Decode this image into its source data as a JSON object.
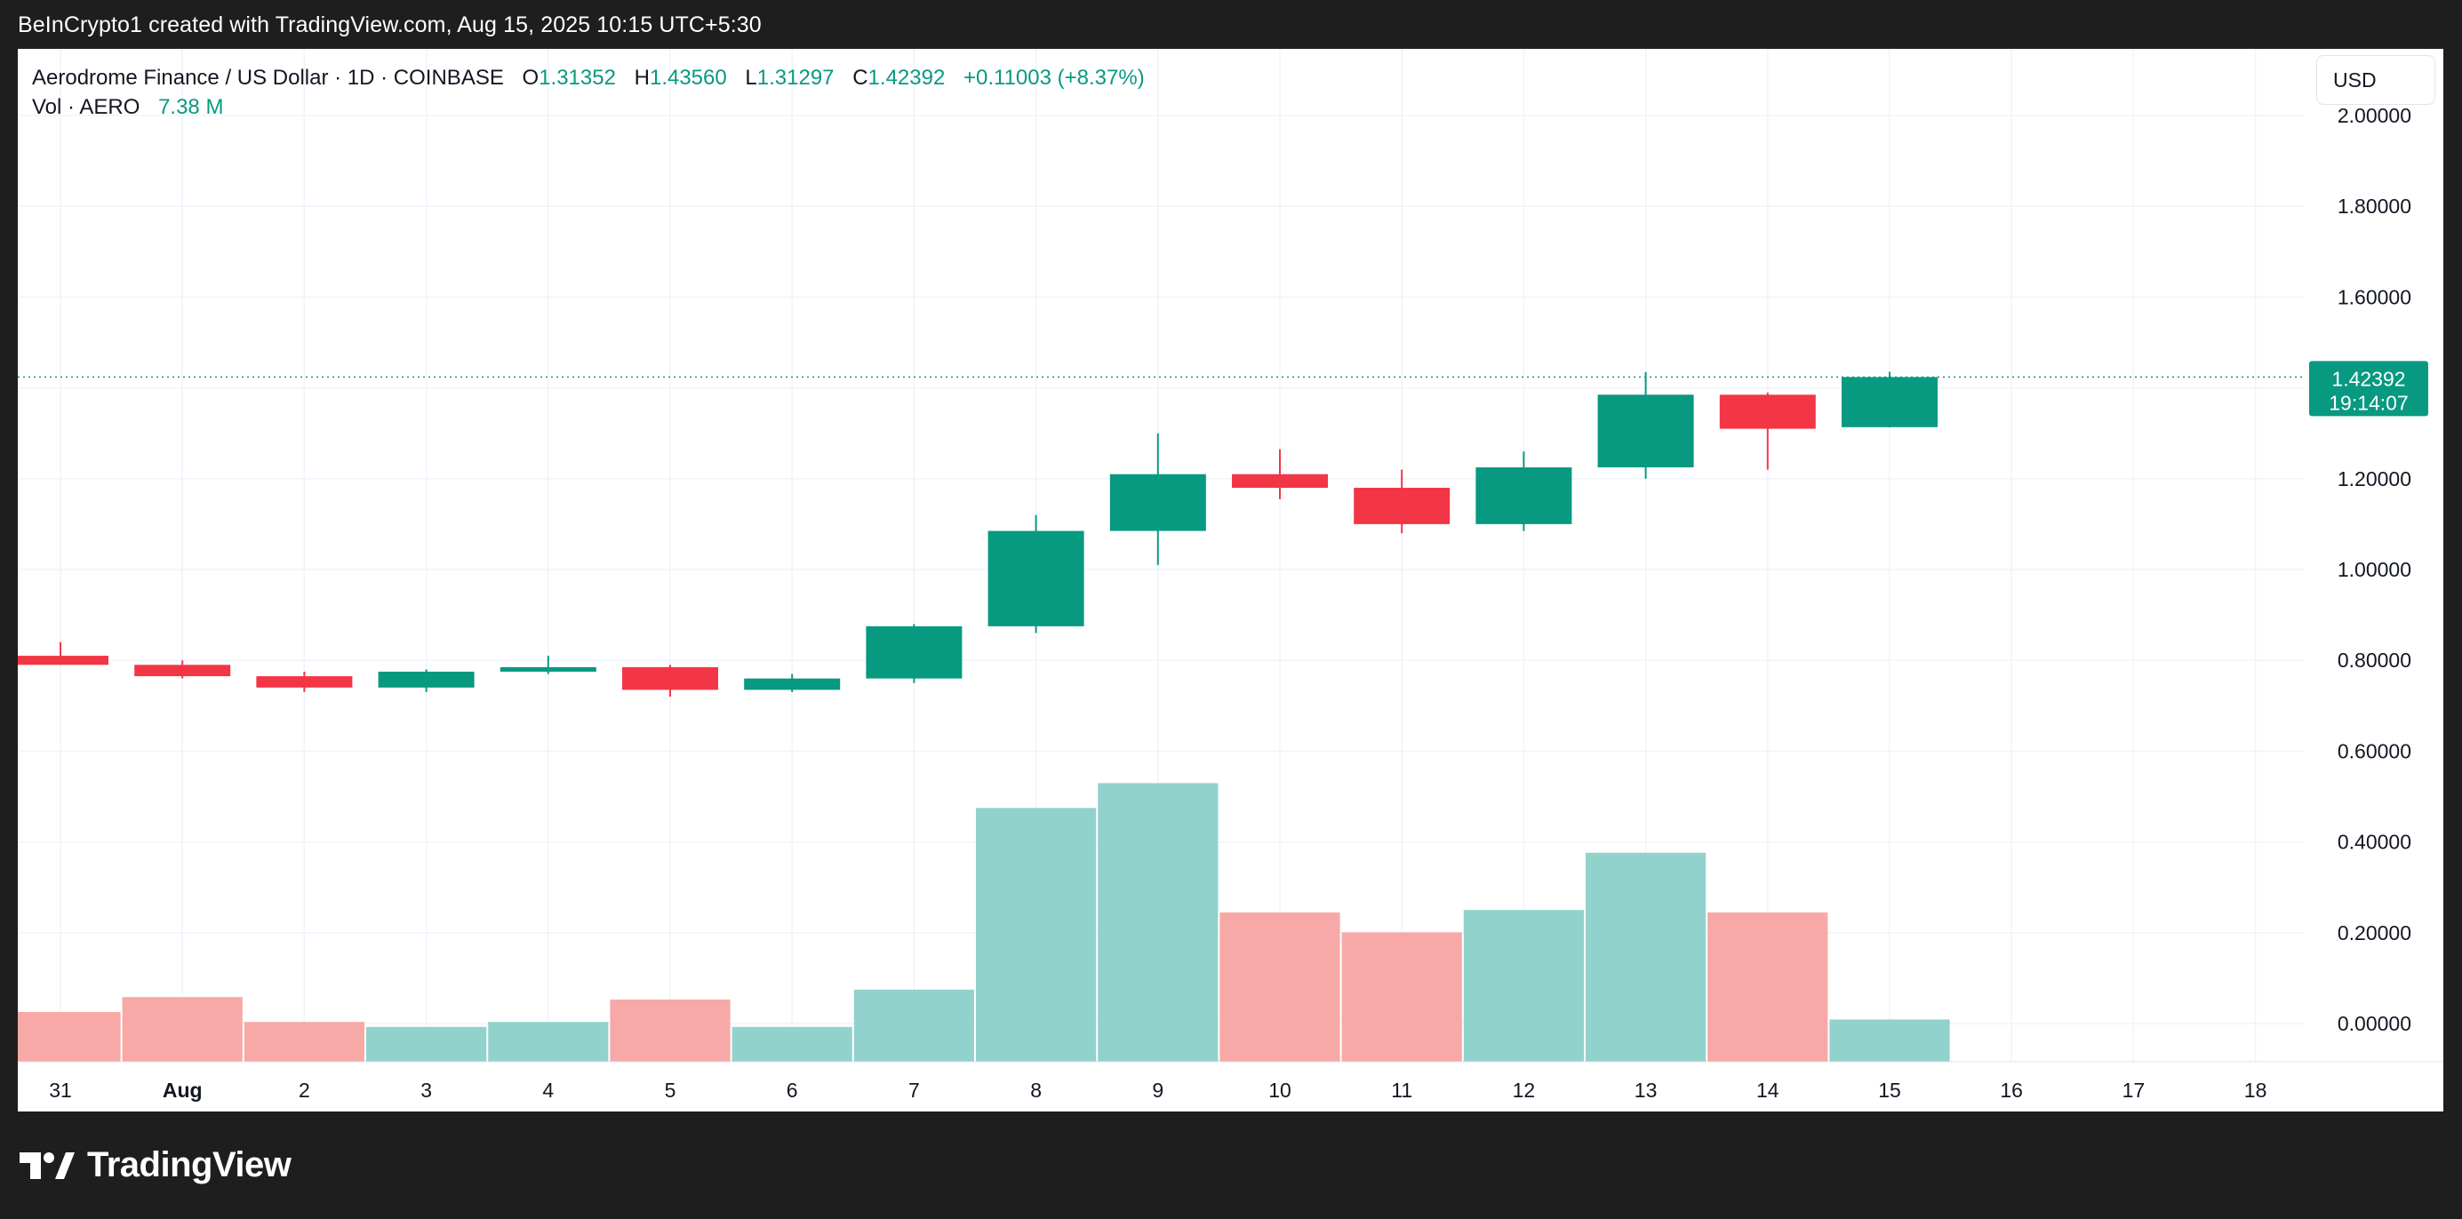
{
  "header": {
    "attribution": "BeInCrypto1 created with TradingView.com, Aug 15, 2025 10:15 UTC+5:30"
  },
  "legend": {
    "symbol": "Aerodrome Finance / US Dollar · 1D · COINBASE",
    "o_label": "O",
    "o_value": "1.31352",
    "h_label": "H",
    "h_value": "1.43560",
    "l_label": "L",
    "l_value": "1.31297",
    "c_label": "C",
    "c_value": "1.42392",
    "change": "+0.11003 (+8.37%)",
    "vol_label": "Vol · AERO",
    "vol_value": "7.38 M"
  },
  "currency_button": "USD",
  "price_tag": {
    "price": "1.42392",
    "countdown": "19:14:07"
  },
  "footer": {
    "logo_text": "TradingView"
  },
  "colors": {
    "up": "#089981",
    "down": "#f23645",
    "vol_up": "#92d2cc",
    "vol_down": "#f7a9a7",
    "grid": "#f0f3fa"
  },
  "chart_data": {
    "type": "candlestick",
    "y_axis": {
      "ticks": [
        "2.00000",
        "1.80000",
        "1.60000",
        "1.40000",
        "1.20000",
        "1.00000",
        "0.80000",
        "0.60000",
        "0.40000",
        "0.20000",
        "0.00000"
      ],
      "range": [
        -0.08,
        2.1
      ]
    },
    "x_labels": [
      "31",
      "Aug",
      "2",
      "3",
      "4",
      "5",
      "6",
      "7",
      "8",
      "9",
      "10",
      "11",
      "12",
      "13",
      "14",
      "15",
      "16",
      "17",
      "18"
    ],
    "candles": [
      {
        "date": "31",
        "open": 0.81,
        "high": 0.84,
        "low": 0.79,
        "close": 0.79
      },
      {
        "date": "Aug",
        "open": 0.79,
        "high": 0.8,
        "low": 0.76,
        "close": 0.765
      },
      {
        "date": "2",
        "open": 0.765,
        "high": 0.775,
        "low": 0.73,
        "close": 0.74
      },
      {
        "date": "3",
        "open": 0.74,
        "high": 0.78,
        "low": 0.73,
        "close": 0.775
      },
      {
        "date": "4",
        "open": 0.775,
        "high": 0.81,
        "low": 0.77,
        "close": 0.785
      },
      {
        "date": "5",
        "open": 0.785,
        "high": 0.79,
        "low": 0.72,
        "close": 0.735
      },
      {
        "date": "6",
        "open": 0.735,
        "high": 0.77,
        "low": 0.73,
        "close": 0.76
      },
      {
        "date": "7",
        "open": 0.76,
        "high": 0.88,
        "low": 0.75,
        "close": 0.875
      },
      {
        "date": "8",
        "open": 0.875,
        "high": 1.12,
        "low": 0.86,
        "close": 1.085
      },
      {
        "date": "9",
        "open": 1.085,
        "high": 1.3,
        "low": 1.01,
        "close": 1.21
      },
      {
        "date": "10",
        "open": 1.21,
        "high": 1.265,
        "low": 1.155,
        "close": 1.18
      },
      {
        "date": "11",
        "open": 1.18,
        "high": 1.22,
        "low": 1.08,
        "close": 1.1
      },
      {
        "date": "12",
        "open": 1.1,
        "high": 1.26,
        "low": 1.085,
        "close": 1.225
      },
      {
        "date": "13",
        "open": 1.225,
        "high": 1.435,
        "low": 1.2,
        "close": 1.385
      },
      {
        "date": "14",
        "open": 1.385,
        "high": 1.39,
        "low": 1.22,
        "close": 1.31
      },
      {
        "date": "15",
        "open": 1.31352,
        "high": 1.4356,
        "low": 1.31297,
        "close": 1.42392
      }
    ],
    "volume": {
      "unit": "relative",
      "values": [
        0.1,
        0.13,
        0.08,
        0.07,
        0.08,
        0.125,
        0.07,
        0.145,
        0.51,
        0.56,
        0.3,
        0.26,
        0.305,
        0.42,
        0.3,
        0.085
      ]
    },
    "last_price": 1.42392
  }
}
